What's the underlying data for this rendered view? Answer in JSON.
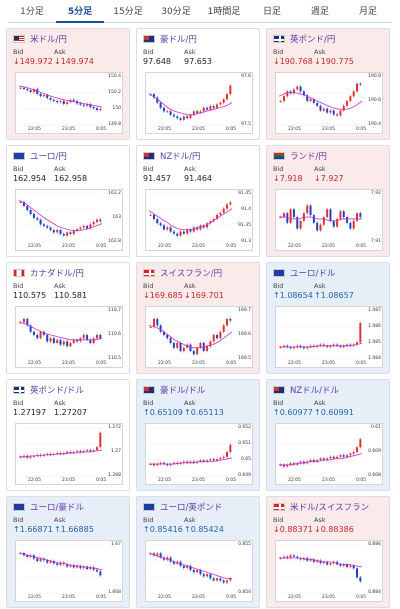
{
  "tabs": [
    {
      "label": "1分足",
      "active": false
    },
    {
      "label": "5分足",
      "active": true
    },
    {
      "label": "15分足",
      "active": false
    },
    {
      "label": "30分足",
      "active": false
    },
    {
      "label": "1時間足",
      "active": false
    },
    {
      "label": "日足",
      "active": false
    },
    {
      "label": "週足",
      "active": false
    },
    {
      "label": "月足",
      "active": false
    }
  ],
  "labels": {
    "bid": "Bid",
    "ask": "Ask"
  },
  "colors": {
    "down": "#c4262e",
    "up": "#1e64b4",
    "ma": "#cc33cc",
    "bull": "#e03030",
    "bear": "#2040c0"
  },
  "x_ticks": [
    "22:05",
    "23:05",
    "0:05"
  ],
  "pairs": [
    {
      "name": "米ドル/円",
      "flag": "us-flag",
      "trend": "down",
      "bid": "149.972",
      "ask": "149.974",
      "bid_arrow": "↓",
      "ask_arrow": "↓",
      "y_ticks": [
        "150.4",
        "150.2",
        "150",
        "149.8"
      ],
      "chart_data": {
        "type": "candlestick",
        "x": [
          "22:05",
          "23:05",
          "0:05"
        ],
        "ylim": [
          149.7,
          150.5
        ],
        "closes": [
          150.32,
          150.3,
          150.28,
          150.25,
          150.3,
          150.22,
          150.18,
          150.2,
          150.15,
          150.12,
          150.1,
          150.08,
          150.1,
          150.05,
          150.08,
          150.12,
          150.1,
          150.06,
          150.04,
          150.02,
          150.05,
          150.0,
          149.98,
          149.95,
          149.97
        ],
        "ma": [
          150.35,
          150.33,
          150.3,
          150.26,
          150.22,
          150.18,
          150.15,
          150.12,
          150.1,
          150.08,
          150.06,
          150.04,
          150.02,
          150.0
        ]
      }
    },
    {
      "name": "豪ドル/円",
      "flag": "au-flag",
      "trend": "neutral",
      "bid": "97.648",
      "ask": "97.653",
      "bid_arrow": "",
      "ask_arrow": "",
      "y_ticks": [
        "97.6",
        "97.5"
      ],
      "chart_data": {
        "type": "candlestick",
        "x": [
          "22:05",
          "23:05",
          "0:05"
        ],
        "ylim": [
          97.42,
          97.7
        ],
        "closes": [
          97.6,
          97.58,
          97.55,
          97.52,
          97.5,
          97.5,
          97.48,
          97.47,
          97.46,
          97.45,
          97.47,
          97.46,
          97.48,
          97.5,
          97.49,
          97.5,
          97.52,
          97.51,
          97.53,
          97.52,
          97.54,
          97.55,
          97.57,
          97.6,
          97.65
        ],
        "ma": [
          97.6,
          97.58,
          97.55,
          97.52,
          97.5,
          97.49,
          97.48,
          97.48,
          97.49,
          97.5,
          97.51,
          97.52,
          97.53,
          97.55
        ]
      }
    },
    {
      "name": "英ポンド/円",
      "flag": "uk-flag",
      "trend": "down",
      "bid": "190.768",
      "ask": "190.775",
      "bid_arrow": "↓",
      "ask_arrow": "↓",
      "y_ticks": [
        "190.8",
        "190.6",
        "190.4"
      ],
      "chart_data": {
        "type": "candlestick",
        "x": [
          "22:05",
          "23:05",
          "0:05"
        ],
        "ylim": [
          190.35,
          190.85
        ],
        "closes": [
          190.6,
          190.65,
          190.7,
          190.68,
          190.72,
          190.75,
          190.7,
          190.66,
          190.6,
          190.62,
          190.58,
          190.55,
          190.5,
          190.52,
          190.48,
          190.5,
          190.46,
          190.45,
          190.5,
          190.55,
          190.6,
          190.65,
          190.7,
          190.78,
          190.77
        ],
        "ma": [
          190.65,
          190.68,
          190.69,
          190.68,
          190.66,
          190.63,
          190.6,
          190.57,
          190.54,
          190.52,
          190.51,
          190.52,
          190.55,
          190.6
        ]
      }
    },
    {
      "name": "ユーロ/円",
      "flag": "eu-flag",
      "trend": "neutral",
      "bid": "162.954",
      "ask": "162.958",
      "bid_arrow": "",
      "ask_arrow": "",
      "y_ticks": [
        "163.2",
        "163",
        "162.8"
      ],
      "chart_data": {
        "type": "candlestick",
        "x": [
          "22:05",
          "23:05",
          "0:05"
        ],
        "ylim": [
          162.7,
          163.3
        ],
        "closes": [
          163.2,
          163.15,
          163.1,
          163.05,
          163.0,
          162.98,
          162.92,
          162.9,
          162.88,
          162.85,
          162.82,
          162.85,
          162.8,
          162.78,
          162.82,
          162.8,
          162.84,
          162.86,
          162.88,
          162.9,
          162.87,
          162.92,
          162.95,
          162.98,
          162.96
        ],
        "ma": [
          163.22,
          163.18,
          163.12,
          163.06,
          163.0,
          162.95,
          162.9,
          162.87,
          162.85,
          162.84,
          162.85,
          162.87,
          162.9,
          162.93
        ]
      }
    },
    {
      "name": "NZドル/円",
      "flag": "nz-flag",
      "trend": "neutral",
      "bid": "91.457",
      "ask": "91.464",
      "bid_arrow": "",
      "ask_arrow": "",
      "y_ticks": [
        "91.45",
        "91.4",
        "91.35",
        "91.3"
      ],
      "chart_data": {
        "type": "candlestick",
        "x": [
          "22:05",
          "23:05",
          "0:05"
        ],
        "ylim": [
          91.27,
          91.5
        ],
        "closes": [
          91.4,
          91.38,
          91.36,
          91.35,
          91.33,
          91.34,
          91.32,
          91.31,
          91.3,
          91.32,
          91.31,
          91.33,
          91.32,
          91.34,
          91.33,
          91.35,
          91.34,
          91.36,
          91.37,
          91.38,
          91.4,
          91.41,
          91.43,
          91.45,
          91.46
        ],
        "ma": [
          91.42,
          91.4,
          91.38,
          91.36,
          91.34,
          91.33,
          91.33,
          91.33,
          91.34,
          91.35,
          91.37,
          91.39,
          91.41,
          91.43
        ]
      }
    },
    {
      "name": "ランド/円",
      "flag": "za-flag",
      "trend": "down",
      "bid": "7.918",
      "ask": "7.927",
      "bid_arrow": "↓",
      "ask_arrow": "↓",
      "y_ticks": [
        "7.92",
        "7.91"
      ],
      "chart_data": {
        "type": "candlestick",
        "x": [
          "22:05",
          "23:05",
          "0:05"
        ],
        "ylim": [
          7.905,
          7.93
        ],
        "closes": [
          7.918,
          7.92,
          7.915,
          7.922,
          7.918,
          7.912,
          7.916,
          7.92,
          7.924,
          7.919,
          7.915,
          7.911,
          7.914,
          7.918,
          7.922,
          7.916,
          7.913,
          7.917,
          7.921,
          7.918,
          7.915,
          7.912,
          7.916,
          7.92,
          7.918
        ],
        "ma": [
          7.918,
          7.918,
          7.917,
          7.917,
          7.918,
          7.918,
          7.917,
          7.917,
          7.916,
          7.916,
          7.917,
          7.917,
          7.917,
          7.917
        ]
      }
    },
    {
      "name": "カナダドル/円",
      "flag": "ca-flag",
      "trend": "neutral",
      "bid": "110.575",
      "ask": "110.581",
      "bid_arrow": "",
      "ask_arrow": "",
      "y_ticks": [
        "110.7",
        "110.6",
        "110.5"
      ],
      "chart_data": {
        "type": "candlestick",
        "x": [
          "22:05",
          "23:05",
          "0:05"
        ],
        "ylim": [
          110.45,
          110.75
        ],
        "closes": [
          110.68,
          110.7,
          110.66,
          110.62,
          110.6,
          110.58,
          110.62,
          110.6,
          110.56,
          110.58,
          110.55,
          110.57,
          110.54,
          110.56,
          110.53,
          110.55,
          110.57,
          110.56,
          110.58,
          110.6,
          110.57,
          110.55,
          110.58,
          110.6,
          110.58
        ],
        "ma": [
          110.68,
          110.67,
          110.65,
          110.63,
          110.61,
          110.6,
          110.59,
          110.58,
          110.57,
          110.57,
          110.57,
          110.57,
          110.57,
          110.58
        ]
      }
    },
    {
      "name": "スイスフラン/円",
      "flag": "ch-flag",
      "trend": "down",
      "bid": "169.685",
      "ask": "169.701",
      "bid_arrow": "↓",
      "ask_arrow": "↓",
      "y_ticks": [
        "169.7",
        "169.6",
        "169.5"
      ],
      "chart_data": {
        "type": "candlestick",
        "x": [
          "22:05",
          "23:05",
          "0:05"
        ],
        "ylim": [
          169.45,
          169.75
        ],
        "closes": [
          169.65,
          169.7,
          169.66,
          169.62,
          169.6,
          169.58,
          169.55,
          169.52,
          169.55,
          169.5,
          169.52,
          169.54,
          169.5,
          169.48,
          169.52,
          169.55,
          169.5,
          169.53,
          169.56,
          169.6,
          169.58,
          169.62,
          169.66,
          169.7,
          169.69
        ],
        "ma": [
          169.66,
          169.65,
          169.63,
          169.6,
          169.57,
          169.55,
          169.53,
          169.52,
          169.52,
          169.53,
          169.54,
          169.56,
          169.59,
          169.62
        ]
      }
    },
    {
      "name": "ユーロ/ドル",
      "flag": "eu-flag",
      "trend": "up",
      "bid": "1.08654",
      "ask": "1.08657",
      "bid_arrow": "↑",
      "ask_arrow": "↑",
      "y_ticks": [
        "1.087",
        "1.086",
        "1.085",
        "1.084"
      ],
      "chart_data": {
        "type": "candlestick",
        "x": [
          "22:05",
          "23:05",
          "0:05"
        ],
        "ylim": [
          1.0835,
          1.0875
        ],
        "closes": [
          1.0845,
          1.0846,
          1.0845,
          1.0844,
          1.0845,
          1.0846,
          1.0845,
          1.0844,
          1.0845,
          1.0846,
          1.0845,
          1.0846,
          1.0847,
          1.0846,
          1.0845,
          1.0846,
          1.0847,
          1.0846,
          1.0845,
          1.0846,
          1.0847,
          1.0846,
          1.0847,
          1.0849,
          1.0865
        ],
        "ma": [
          1.0845,
          1.0845,
          1.0845,
          1.0845,
          1.0845,
          1.0845,
          1.0846,
          1.0846,
          1.0846,
          1.0846,
          1.0846,
          1.0846,
          1.0847,
          1.0848
        ]
      }
    },
    {
      "name": "英ポンド/ドル",
      "flag": "uk-flag",
      "trend": "neutral",
      "bid": "1.27197",
      "ask": "1.27207",
      "bid_arrow": "",
      "ask_arrow": "",
      "y_ticks": [
        "1.272",
        "1.27",
        "1.268"
      ],
      "chart_data": {
        "type": "candlestick",
        "x": [
          "22:05",
          "23:05",
          "0:05"
        ],
        "ylim": [
          1.2675,
          1.2725
        ],
        "closes": [
          1.2695,
          1.2696,
          1.2694,
          1.2695,
          1.2696,
          1.2697,
          1.2696,
          1.2697,
          1.2698,
          1.2697,
          1.2698,
          1.2699,
          1.2698,
          1.2699,
          1.27,
          1.2699,
          1.27,
          1.2701,
          1.27,
          1.2701,
          1.2702,
          1.2701,
          1.2702,
          1.2705,
          1.272
        ],
        "ma": [
          1.2695,
          1.2695,
          1.2696,
          1.2696,
          1.2697,
          1.2697,
          1.2698,
          1.2698,
          1.2699,
          1.2699,
          1.27,
          1.27,
          1.2701,
          1.2702
        ]
      }
    },
    {
      "name": "豪ドル/ドル",
      "flag": "au-flag",
      "trend": "up",
      "bid": "0.65109",
      "ask": "0.65113",
      "bid_arrow": "↑",
      "ask_arrow": "↑",
      "y_ticks": [
        "0.652",
        "0.651",
        "0.65",
        "0.649"
      ],
      "chart_data": {
        "type": "candlestick",
        "x": [
          "22:05",
          "23:05",
          "0:05"
        ],
        "ylim": [
          0.6485,
          0.6525
        ],
        "closes": [
          0.6495,
          0.6494,
          0.6495,
          0.6496,
          0.6495,
          0.6494,
          0.6495,
          0.6496,
          0.6495,
          0.6496,
          0.6497,
          0.6496,
          0.6497,
          0.6496,
          0.6497,
          0.6498,
          0.6497,
          0.6498,
          0.6499,
          0.6498,
          0.6499,
          0.65,
          0.6501,
          0.6505,
          0.6511
        ],
        "ma": [
          0.6495,
          0.6495,
          0.6495,
          0.6495,
          0.6495,
          0.6496,
          0.6496,
          0.6496,
          0.6497,
          0.6497,
          0.6497,
          0.6498,
          0.6499,
          0.65
        ]
      }
    },
    {
      "name": "NZドル/ドル",
      "flag": "nz-flag",
      "trend": "up",
      "bid": "0.60977",
      "ask": "0.60991",
      "bid_arrow": "↑",
      "ask_arrow": "↑",
      "y_ticks": [
        "0.61",
        "0.609",
        "0.608"
      ],
      "chart_data": {
        "type": "candlestick",
        "x": [
          "22:05",
          "23:05",
          "0:05"
        ],
        "ylim": [
          0.6075,
          0.6105
        ],
        "closes": [
          0.6082,
          0.6081,
          0.6082,
          0.6083,
          0.6082,
          0.6083,
          0.6084,
          0.6083,
          0.6084,
          0.6085,
          0.6084,
          0.6085,
          0.6086,
          0.6085,
          0.6086,
          0.6087,
          0.6086,
          0.6087,
          0.6088,
          0.6087,
          0.6088,
          0.6089,
          0.609,
          0.6093,
          0.6098
        ],
        "ma": [
          0.6082,
          0.6082,
          0.6082,
          0.6083,
          0.6083,
          0.6084,
          0.6084,
          0.6085,
          0.6085,
          0.6086,
          0.6086,
          0.6087,
          0.6088,
          0.6089
        ]
      }
    },
    {
      "name": "ユーロ/豪ドル",
      "flag": "eu-flag",
      "trend": "up",
      "bid": "1.66871",
      "ask": "1.66885",
      "bid_arrow": "↑",
      "ask_arrow": "↑",
      "y_ticks": [
        "1.67",
        "1.668"
      ],
      "chart_data": {
        "type": "candlestick",
        "x": [
          "22:05",
          "23:05",
          "0:05"
        ],
        "ylim": [
          1.6665,
          1.6725
        ],
        "closes": [
          1.6715,
          1.6712,
          1.671,
          1.6712,
          1.6708,
          1.6705,
          1.6708,
          1.6706,
          1.6703,
          1.6705,
          1.6702,
          1.67,
          1.6703,
          1.6701,
          1.6698,
          1.67,
          1.6697,
          1.6699,
          1.6696,
          1.6698,
          1.6695,
          1.6697,
          1.6694,
          1.6692,
          1.6687
        ],
        "ma": [
          1.6715,
          1.6713,
          1.6711,
          1.6709,
          1.6707,
          1.6705,
          1.6703,
          1.6702,
          1.67,
          1.6699,
          1.6698,
          1.6697,
          1.6696,
          1.6694
        ]
      }
    },
    {
      "name": "ユーロ/英ポンド",
      "flag": "eu-flag",
      "trend": "up",
      "bid": "0.85416",
      "ask": "0.85424",
      "bid_arrow": "↑",
      "ask_arrow": "↑",
      "y_ticks": [
        "0.855",
        "0.854"
      ],
      "chart_data": {
        "type": "candlestick",
        "x": [
          "22:05",
          "23:05",
          "0:05"
        ],
        "ylim": [
          0.8535,
          0.8558
        ],
        "closes": [
          0.8554,
          0.8553,
          0.8554,
          0.8552,
          0.8551,
          0.8552,
          0.855,
          0.8549,
          0.855,
          0.8548,
          0.8547,
          0.8548,
          0.8546,
          0.8545,
          0.8546,
          0.8544,
          0.8543,
          0.8544,
          0.8542,
          0.8541,
          0.8542,
          0.8541,
          0.854,
          0.8541,
          0.8542
        ],
        "ma": [
          0.8554,
          0.8553,
          0.8552,
          0.8551,
          0.855,
          0.8549,
          0.8548,
          0.8547,
          0.8546,
          0.8545,
          0.8544,
          0.8543,
          0.8542,
          0.8542
        ]
      }
    },
    {
      "name": "米ドル/スイスフラン",
      "flag": "ch-flag",
      "trend": "down",
      "bid": "0.88371",
      "ask": "0.88386",
      "bid_arrow": "↓",
      "ask_arrow": "↓",
      "y_ticks": [
        "0.886",
        "0.884"
      ],
      "chart_data": {
        "type": "candlestick",
        "x": [
          "22:05",
          "23:05",
          "0:05"
        ],
        "ylim": [
          0.8828,
          0.8865
        ],
        "closes": [
          0.8855,
          0.8856,
          0.8855,
          0.8857,
          0.8856,
          0.8855,
          0.8854,
          0.8855,
          0.8853,
          0.8854,
          0.8852,
          0.8853,
          0.8851,
          0.8852,
          0.885,
          0.8851,
          0.8852,
          0.885,
          0.8849,
          0.885,
          0.8848,
          0.8849,
          0.8847,
          0.884,
          0.8837
        ],
        "ma": [
          0.8855,
          0.8855,
          0.8855,
          0.8855,
          0.8854,
          0.8854,
          0.8853,
          0.8852,
          0.8852,
          0.8851,
          0.885,
          0.885,
          0.8849,
          0.8848
        ]
      }
    }
  ]
}
